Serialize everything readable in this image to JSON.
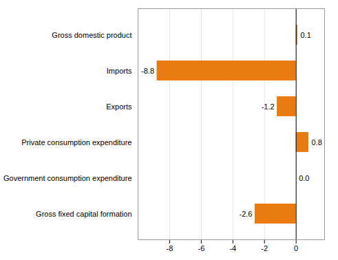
{
  "chart_data": {
    "type": "bar",
    "orientation": "horizontal",
    "categories": [
      "Gross fixed capital formation",
      "Government consumption expenditure",
      "Private consumption expenditure",
      "Exports",
      "Imports",
      "Gross domestic product"
    ],
    "values": [
      -2.6,
      0.0,
      0.8,
      -1.2,
      -8.8,
      0.1
    ],
    "value_labels": [
      "-2.6",
      "0.0",
      "0.8",
      "-1.2",
      "-8.8",
      "0.1"
    ],
    "data_labels": true,
    "color": "#E87C10",
    "xlim": [
      -10.0,
      1.8
    ],
    "xticks": [
      -8,
      -6,
      -4,
      -2,
      0
    ],
    "grid": true
  }
}
